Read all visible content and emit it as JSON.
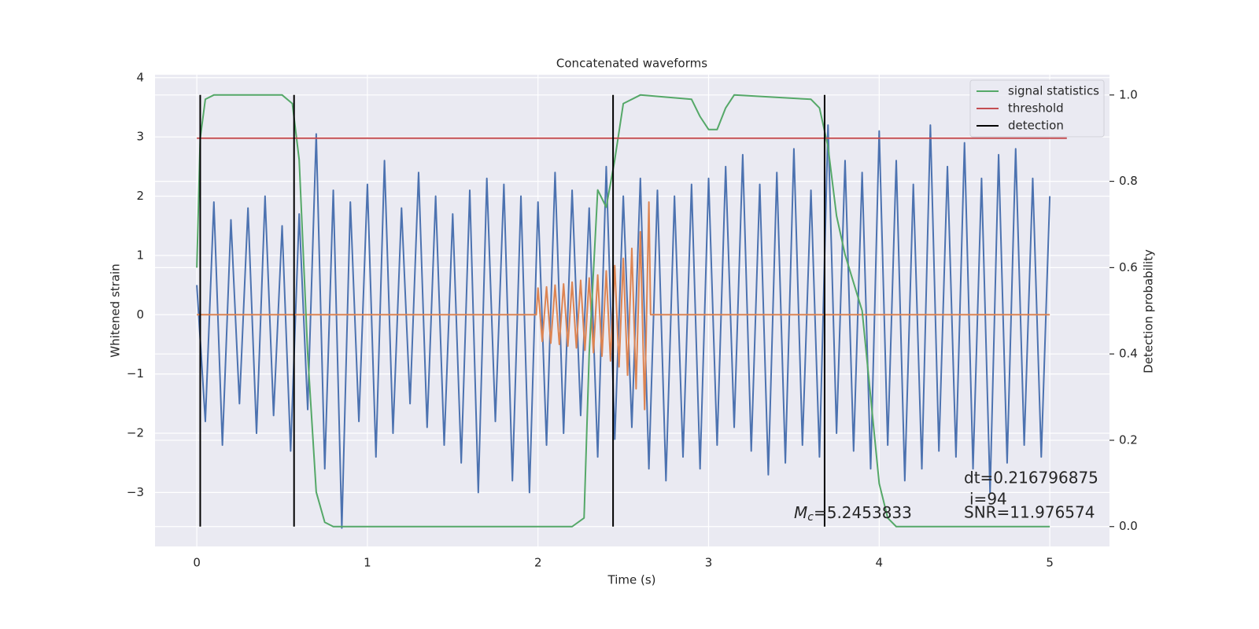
{
  "chart_data": {
    "type": "line",
    "title": "Concatenated waveforms",
    "xlabel": "Time (s)",
    "ylabel": "Whitened strain",
    "y2label": "Detection probability",
    "xlim": [
      -0.245,
      5.35
    ],
    "ylim": [
      -3.91,
      4.05
    ],
    "y2lim": [
      -0.046,
      1.047
    ],
    "xticks": [
      0,
      1,
      2,
      3,
      4,
      5
    ],
    "yticks": [
      {
        "value": -3,
        "label": "−3"
      },
      {
        "value": -2,
        "label": "−2"
      },
      {
        "value": -1,
        "label": "−1"
      },
      0,
      1,
      2,
      3,
      4
    ],
    "y2ticks": [
      {
        "value": 0,
        "label": "0.0"
      },
      0.2,
      0.4,
      0.6,
      0.8,
      {
        "value": 1,
        "label": "1.0"
      }
    ],
    "grid": true,
    "legend": "upper right",
    "series": [
      {
        "color": "#4c72b0",
        "x": [
          0,
          0.05,
          0.1,
          0.15,
          0.2,
          0.25,
          0.3,
          0.35,
          0.4,
          0.45,
          0.5,
          0.55,
          0.6,
          0.65,
          0.7,
          0.75,
          0.8,
          0.85,
          0.9,
          0.95,
          1,
          1.05,
          1.1,
          1.15,
          1.2,
          1.25,
          1.3,
          1.35,
          1.4,
          1.45,
          1.5,
          1.55,
          1.6,
          1.65,
          1.7,
          1.75,
          1.8,
          1.85,
          1.9,
          1.95,
          2,
          2.05,
          2.1,
          2.15,
          2.2,
          2.25,
          2.3,
          2.35,
          2.4,
          2.45,
          2.5,
          2.55,
          2.6,
          2.65,
          2.7,
          2.75,
          2.8,
          2.85,
          2.9,
          2.95,
          3,
          3.05,
          3.1,
          3.15,
          3.2,
          3.25,
          3.3,
          3.35,
          3.4,
          3.45,
          3.5,
          3.55,
          3.6,
          3.65,
          3.7,
          3.75,
          3.8,
          3.85,
          3.9,
          3.95,
          4,
          4.05,
          4.1,
          4.15,
          4.2,
          4.25,
          4.3,
          4.35,
          4.4,
          4.45,
          4.5,
          4.55,
          4.6,
          4.65,
          4.7,
          4.75,
          4.8,
          4.85,
          4.9,
          4.95,
          5
        ],
        "values": [
          0.5,
          -1.8,
          1.9,
          -2.2,
          1.6,
          -1.5,
          1.8,
          -2.0,
          2.0,
          -1.7,
          1.5,
          -2.3,
          1.7,
          -1.6,
          3.05,
          -2.6,
          2.1,
          -3.6,
          1.9,
          -1.8,
          2.2,
          -2.4,
          2.6,
          -2.0,
          1.8,
          -1.5,
          2.4,
          -1.9,
          2.0,
          -2.2,
          1.7,
          -2.5,
          2.1,
          -3.0,
          2.3,
          -1.8,
          2.2,
          -2.8,
          2.0,
          -3.0,
          1.9,
          -2.2,
          2.4,
          -2.0,
          2.1,
          -1.7,
          1.8,
          -2.4,
          2.5,
          -2.1,
          2.0,
          -1.9,
          2.3,
          -2.6,
          2.1,
          -2.8,
          2.0,
          -2.4,
          2.2,
          -2.6,
          2.3,
          -2.2,
          2.5,
          -1.9,
          2.7,
          -2.3,
          2.2,
          -2.7,
          2.4,
          -2.5,
          2.8,
          -2.2,
          2.1,
          -2.4,
          3.2,
          -2.0,
          2.6,
          -2.3,
          2.4,
          -2.6,
          3.1,
          -2.2,
          2.6,
          -2.8,
          2.2,
          -2.6,
          3.2,
          -2.3,
          2.5,
          -2.4,
          2.9,
          -2.6,
          2.3,
          -3.0,
          2.7,
          -2.5,
          2.8,
          -2.2,
          2.3,
          -2.4,
          2.0
        ]
      },
      {
        "color": "#dd8452",
        "x": [
          0,
          1.99,
          2.0,
          2.025,
          2.05,
          2.075,
          2.1,
          2.125,
          2.15,
          2.175,
          2.2,
          2.225,
          2.25,
          2.275,
          2.3,
          2.325,
          2.35,
          2.375,
          2.4,
          2.425,
          2.45,
          2.475,
          2.5,
          2.525,
          2.55,
          2.575,
          2.6,
          2.625,
          2.65,
          2.66,
          5
        ],
        "values": [
          0,
          0,
          0.45,
          -0.45,
          0.47,
          -0.48,
          0.5,
          -0.5,
          0.52,
          -0.53,
          0.55,
          -0.56,
          0.58,
          -0.6,
          0.62,
          -0.64,
          0.67,
          -0.7,
          0.74,
          -0.78,
          0.83,
          -0.88,
          0.95,
          -1.02,
          1.12,
          -1.25,
          1.4,
          -1.6,
          1.9,
          0,
          0
        ]
      },
      {
        "name": "signal statistics",
        "color": "#55a868",
        "axis": "y2",
        "x": [
          0,
          0.02,
          0.05,
          0.1,
          0.5,
          0.56,
          0.6,
          0.65,
          0.7,
          0.75,
          0.8,
          2.2,
          2.27,
          2.3,
          2.35,
          2.4,
          2.45,
          2.5,
          2.6,
          2.9,
          2.95,
          3.0,
          3.05,
          3.1,
          3.15,
          3.6,
          3.65,
          3.7,
          3.75,
          3.8,
          3.9,
          3.95,
          4.0,
          4.05,
          4.1,
          5.0
        ],
        "values": [
          0.6,
          0.9,
          0.99,
          1.0,
          1.0,
          0.98,
          0.85,
          0.4,
          0.08,
          0.01,
          0.0,
          0.0,
          0.02,
          0.4,
          0.78,
          0.74,
          0.85,
          0.98,
          1.0,
          0.99,
          0.95,
          0.92,
          0.92,
          0.97,
          1.0,
          0.99,
          0.97,
          0.88,
          0.72,
          0.63,
          0.5,
          0.3,
          0.1,
          0.02,
          0.0,
          0.0
        ]
      },
      {
        "name": "threshold",
        "color": "#c44e52",
        "axis": "y2",
        "x": [
          0,
          5.1
        ],
        "values": [
          0.9,
          0.9
        ]
      },
      {
        "name": "detection",
        "color": "#000000",
        "axis": "y2",
        "kind": "vline",
        "x": [
          0.02,
          0.57,
          2.44,
          3.68
        ],
        "ymin": 0,
        "ymax": 1
      }
    ],
    "annotations": {
      "dt": "dt=0.216796875",
      "i": "i=94",
      "snr": "SNR=11.976574",
      "mc": {
        "symbol": "M",
        "subscript": "c",
        "text": "=5.2453833"
      }
    }
  }
}
